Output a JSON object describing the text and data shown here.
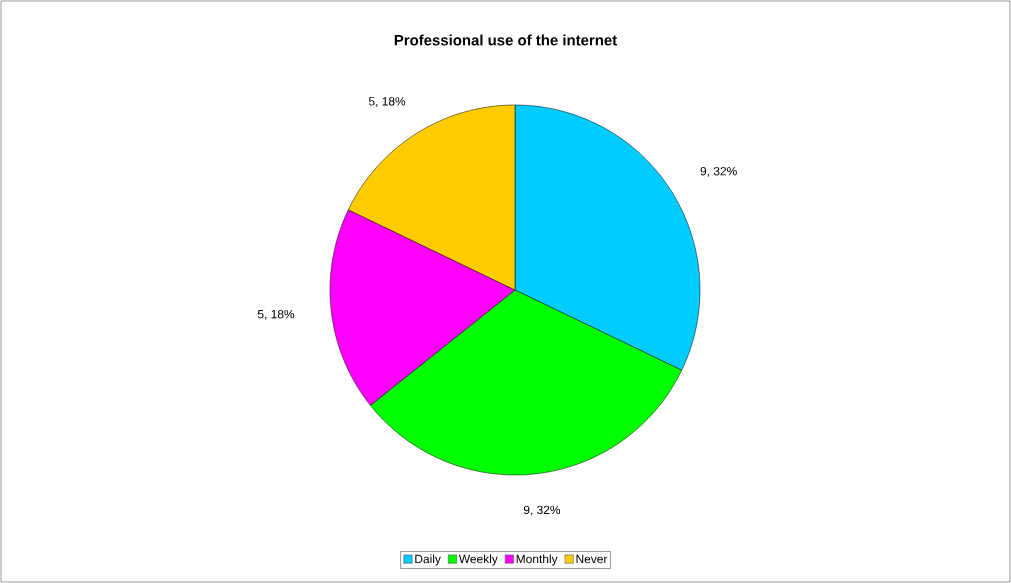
{
  "chart_data": {
    "type": "pie",
    "title": "Professional use of the internet",
    "categories": [
      "Daily",
      "Weekly",
      "Monthly",
      "Never"
    ],
    "values": [
      9,
      9,
      5,
      5
    ],
    "colors": [
      "#00ccff",
      "#00ff00",
      "#ff00ff",
      "#ffcc00"
    ],
    "value_labels": [
      "9, 32%",
      "9, 32%",
      "5, 18%",
      "5, 18%"
    ],
    "legend": "bottom"
  }
}
